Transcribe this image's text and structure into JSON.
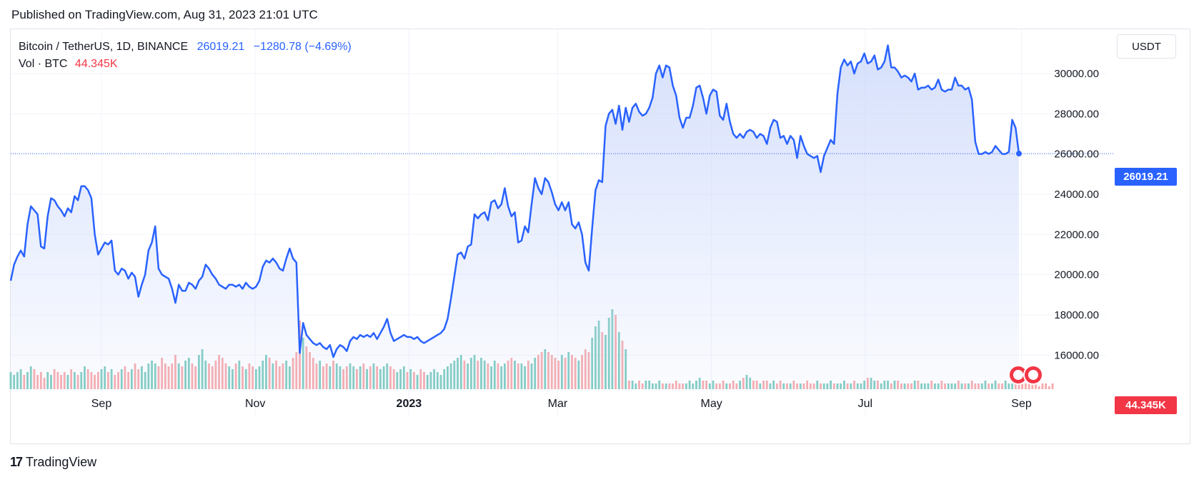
{
  "published": "Published on TradingView.com, Aug 31, 2023 21:01 UTC",
  "legend": {
    "symbol": "Bitcoin / TetherUS, 1D, BINANCE",
    "price": "26019.21",
    "change": "−1280.78 (−4.69%)",
    "vol_label": "Vol · BTC",
    "vol_value": "44.345K"
  },
  "currency_button": "USDT",
  "price_badge": "26019.21",
  "volume_badge": "44.345K",
  "footer_brand": "TradingView",
  "colors": {
    "line": "#2962ff",
    "area_top": "#c9d6fb",
    "volume_up": "#7ccbbf",
    "volume_down": "#f7a9ab",
    "badge_price": "#2962ff",
    "badge_volume": "#f23645"
  },
  "chart_data": {
    "type": "area",
    "series": [
      {
        "values": [
          19700,
          20500,
          20900,
          21200,
          20900,
          22500,
          23400,
          23200,
          23000,
          21400,
          21300,
          22900,
          23800,
          23700,
          23400,
          23200,
          22900,
          23300,
          23100,
          23900,
          23700,
          24400,
          24400,
          24200,
          23800,
          22000,
          21000,
          21300,
          21600,
          21500,
          21700,
          20200,
          20000,
          20300,
          20200,
          19800,
          20100,
          19900,
          18900,
          19500,
          20000,
          21200,
          21600,
          22400,
          20300,
          20000,
          19900,
          19800,
          19300,
          18600,
          19500,
          19200,
          19200,
          19600,
          19500,
          19300,
          19700,
          19900,
          20500,
          20300,
          20000,
          19800,
          19500,
          19400,
          19300,
          19500,
          19500,
          19400,
          19500,
          19300,
          19600,
          19400,
          19300,
          19400,
          19700,
          20400,
          20700,
          20600,
          20800,
          20600,
          20300,
          20200,
          20800,
          21300,
          20800,
          20600,
          16100,
          17600,
          17000,
          16800,
          16600,
          16500,
          16600,
          16400,
          16300,
          16500,
          15900,
          16300,
          16500,
          16400,
          16200,
          16700,
          16900,
          16800,
          17000,
          16900,
          17000,
          16900,
          17100,
          16800,
          17100,
          17400,
          17800,
          17100,
          16700,
          16800,
          16900,
          17000,
          16900,
          16900,
          16800,
          16900,
          16700,
          16600,
          16700,
          16800,
          16900,
          17000,
          17100,
          17300,
          17800,
          18800,
          19900,
          21000,
          21100,
          20800,
          21400,
          21500,
          23000,
          22800,
          23000,
          23100,
          22700,
          23600,
          23700,
          23300,
          23500,
          24300,
          23400,
          22900,
          23100,
          21600,
          21700,
          22400,
          22100,
          23500,
          24800,
          24300,
          24000,
          24800,
          24600,
          24100,
          23500,
          23200,
          23600,
          23200,
          23600,
          22500,
          22300,
          22600,
          22000,
          20600,
          20200,
          22300,
          24200,
          24700,
          24600,
          27400,
          28000,
          28200,
          27500,
          28400,
          27200,
          28300,
          27600,
          28300,
          28500,
          28100,
          27900,
          28000,
          28300,
          28800,
          30000,
          30400,
          29800,
          30400,
          30300,
          29400,
          28900,
          27800,
          27300,
          27800,
          27800,
          28400,
          29300,
          29400,
          28800,
          28000,
          28900,
          29200,
          29100,
          27900,
          27700,
          28500,
          27600,
          27000,
          26800,
          27000,
          26800,
          27100,
          27200,
          27100,
          26800,
          27000,
          26900,
          26500,
          27300,
          27700,
          27600,
          26800,
          26900,
          26500,
          26900,
          26700,
          25800,
          26900,
          26400,
          26000,
          25900,
          25800,
          25900,
          25100,
          25900,
          26300,
          26700,
          26500,
          29000,
          30300,
          30700,
          30400,
          30600,
          30000,
          30500,
          30600,
          31000,
          30500,
          30600,
          30900,
          30200,
          30300,
          30600,
          31400,
          30300,
          30300,
          30100,
          29800,
          29900,
          29800,
          29600,
          30000,
          29200,
          29300,
          29300,
          29400,
          29200,
          29300,
          29700,
          29200,
          29100,
          29200,
          29200,
          29800,
          29400,
          29400,
          29200,
          29300,
          28700,
          26600,
          26000,
          26000,
          26100,
          26000,
          26100,
          26400,
          26200,
          26000,
          26000,
          26100,
          27700,
          27300,
          26019
        ]
      },
      {
        "name": "Vol · BTC",
        "values": [
          6,
          5,
          6,
          7,
          5,
          6,
          8,
          7,
          5,
          6,
          4,
          6,
          5,
          7,
          6,
          5,
          6,
          5,
          7,
          6,
          5,
          6,
          8,
          7,
          6,
          5,
          6,
          7,
          8,
          6,
          7,
          5,
          6,
          7,
          8,
          6,
          7,
          9,
          7,
          8,
          6,
          9,
          10,
          9,
          8,
          11,
          9,
          8,
          9,
          12,
          9,
          8,
          10,
          11,
          9,
          8,
          12,
          14,
          10,
          9,
          8,
          10,
          12,
          11,
          9,
          8,
          7,
          9,
          10,
          8,
          7,
          9,
          8,
          7,
          8,
          10,
          12,
          11,
          9,
          10,
          8,
          9,
          10,
          8,
          11,
          13,
          24,
          18,
          15,
          13,
          11,
          9,
          10,
          8,
          9,
          8,
          10,
          9,
          8,
          7,
          8,
          9,
          8,
          7,
          8,
          9,
          7,
          8,
          9,
          8,
          7,
          8,
          9,
          8,
          7,
          6,
          7,
          8,
          6,
          7,
          6,
          5,
          7,
          6,
          5,
          6,
          7,
          6,
          5,
          7,
          8,
          9,
          10,
          11,
          12,
          10,
          9,
          11,
          12,
          10,
          11,
          10,
          9,
          8,
          10,
          9,
          8,
          9,
          10,
          11,
          10,
          9,
          9,
          8,
          10,
          9,
          11,
          12,
          13,
          14,
          13,
          12,
          11,
          10,
          12,
          11,
          13,
          12,
          11,
          10,
          12,
          14,
          13,
          18,
          22,
          24,
          20,
          19,
          25,
          28,
          26,
          20,
          17,
          14,
          3,
          3,
          2,
          3,
          2,
          3,
          3,
          2,
          2,
          3,
          2,
          2,
          2,
          2,
          3,
          2,
          2,
          2,
          3,
          2,
          3,
          4,
          3,
          3,
          2,
          3,
          2,
          2,
          3,
          2,
          2,
          3,
          2,
          3,
          4,
          5,
          4,
          3,
          3,
          2,
          3,
          3,
          2,
          3,
          2,
          3,
          2,
          2,
          2,
          3,
          2,
          2,
          2,
          3,
          2,
          2,
          3,
          2,
          2,
          2,
          3,
          2,
          2,
          2,
          3,
          2,
          2,
          3,
          2,
          2,
          3,
          4,
          4,
          3,
          3,
          2,
          3,
          3,
          2,
          3,
          3,
          2,
          2,
          2,
          2,
          3,
          3,
          2,
          2,
          2,
          3,
          2,
          2,
          3,
          2,
          2,
          2,
          2,
          3,
          2,
          2,
          2,
          3,
          2,
          2,
          2,
          3,
          2,
          2,
          3,
          2,
          2,
          3,
          2,
          2,
          2,
          3,
          2,
          2,
          2,
          3,
          2,
          1,
          2,
          2,
          1,
          2
        ]
      }
    ],
    "start": "2022-07-27",
    "end": "2023-08-31",
    "x_ticks": [
      "Sep",
      "Nov",
      "2023",
      "Mar",
      "May",
      "Jul",
      "Sep"
    ],
    "x_tick_dates": [
      "2022-09-01",
      "2022-11-01",
      "2023-01-01",
      "2023-03-01",
      "2023-05-01",
      "2023-07-01",
      "2023-09-01"
    ],
    "y_ticks": [
      "16000.00",
      "18000.00",
      "20000.00",
      "22000.00",
      "24000.00",
      "26000.00",
      "28000.00",
      "30000.00"
    ],
    "y_tick_values": [
      16000,
      18000,
      20000,
      22000,
      24000,
      26000,
      28000,
      30000
    ],
    "ylim": [
      14200,
      32200
    ],
    "last_price": 26019.21,
    "grid": true,
    "legend_position": "top-left"
  }
}
